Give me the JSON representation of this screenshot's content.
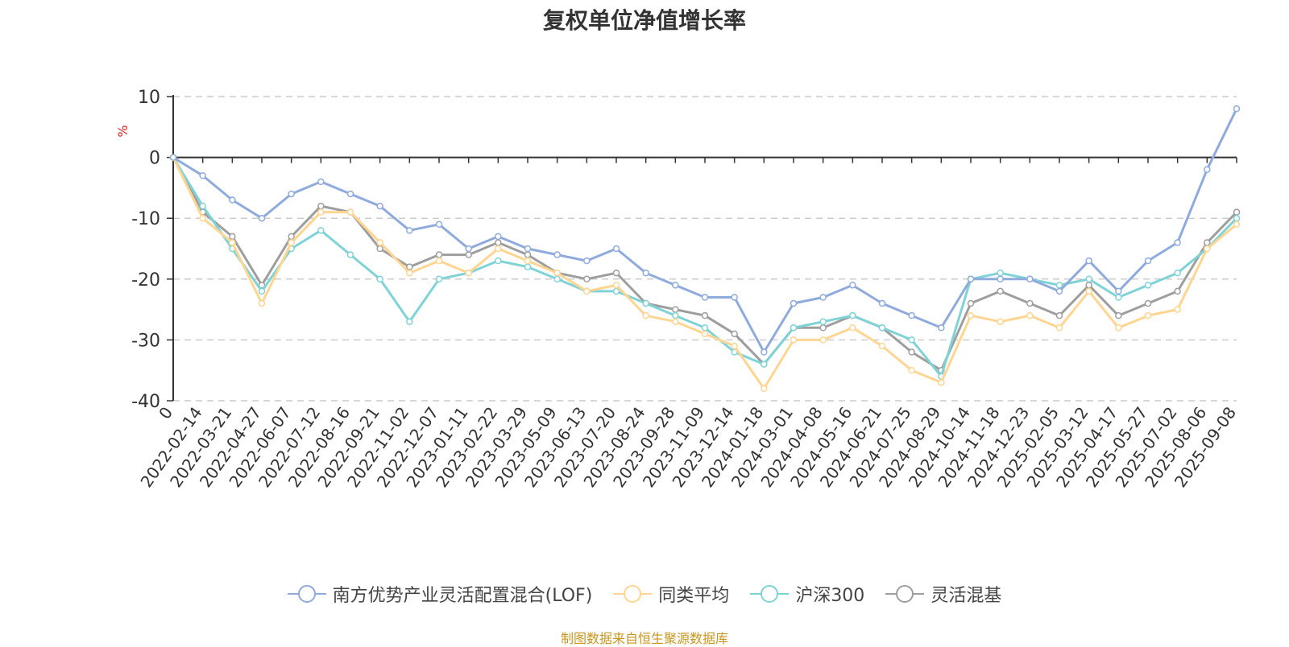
{
  "title": "复权单位净值增长率",
  "source": "制图数据来自恒生聚源数据库",
  "chart_data": {
    "type": "line",
    "title": "复权单位净值增长率",
    "ylabel": "%",
    "ylim": [
      -40,
      10
    ],
    "yticks": [
      10,
      0,
      -10,
      -20,
      -30,
      -40
    ],
    "grid": true,
    "legend_position": "bottom",
    "x_tick_labels": [
      "0",
      "2022-02-14",
      "2022-03-21",
      "2022-04-27",
      "2022-06-07",
      "2022-07-12",
      "2022-08-16",
      "2022-09-21",
      "2022-11-02",
      "2022-12-07",
      "2023-01-11",
      "2023-02-22",
      "2023-03-29",
      "2023-05-09",
      "2023-06-13",
      "2023-07-20",
      "2023-08-24",
      "2023-09-28",
      "2023-11-09",
      "2023-12-14",
      "2024-01-18",
      "2024-03-01",
      "2024-04-08",
      "2024-05-16",
      "2024-06-21",
      "2024-07-25",
      "2024-08-29",
      "2024-10-14",
      "2024-11-18",
      "2024-12-23",
      "2025-02-05",
      "2025-03-12",
      "2025-04-17",
      "2025-05-27",
      "2025-07-02",
      "2025-08-06",
      "2025-09-08"
    ],
    "series": [
      {
        "name": "南方优势产业灵活配置混合(LOF)",
        "color": "#8faadc",
        "values": [
          0,
          -3,
          -7,
          -10,
          -6,
          -4,
          -6,
          -8,
          -12,
          -11,
          -15,
          -13,
          -15,
          -16,
          -17,
          -15,
          -19,
          -21,
          -23,
          -23,
          -32,
          -24,
          -23,
          -21,
          -24,
          -26,
          -28,
          -20,
          -20,
          -20,
          -22,
          -17,
          -22,
          -17,
          -14,
          -2,
          8
        ]
      },
      {
        "name": "同类平均",
        "color": "#ffd591",
        "values": [
          0,
          -10,
          -14,
          -24,
          -14,
          -9,
          -9,
          -14,
          -19,
          -17,
          -19,
          -15,
          -17,
          -19,
          -22,
          -21,
          -26,
          -27,
          -29,
          -31,
          -38,
          -30,
          -30,
          -28,
          -31,
          -35,
          -37,
          -26,
          -27,
          -26,
          -28,
          -22,
          -28,
          -26,
          -25,
          -15,
          -11
        ]
      },
      {
        "name": "沪深300",
        "color": "#7fd3d6",
        "values": [
          0,
          -8,
          -15,
          -22,
          -15,
          -12,
          -16,
          -20,
          -27,
          -20,
          -19,
          -17,
          -18,
          -20,
          -22,
          -22,
          -24,
          -26,
          -28,
          -32,
          -34,
          -28,
          -27,
          -26,
          -28,
          -30,
          -36,
          -20,
          -19,
          -20,
          -21,
          -20,
          -23,
          -21,
          -19,
          -15,
          -10
        ]
      },
      {
        "name": "灵活混基",
        "color": "#9e9e9e",
        "values": [
          0,
          -9,
          -13,
          -21,
          -13,
          -8,
          -9,
          -15,
          -18,
          -16,
          -16,
          -14,
          -16,
          -19,
          -20,
          -19,
          -24,
          -25,
          -26,
          -29,
          -34,
          -28,
          -28,
          -26,
          -28,
          -32,
          -35,
          -24,
          -22,
          -24,
          -26,
          -21,
          -26,
          -24,
          -22,
          -14,
          -9
        ]
      }
    ]
  }
}
